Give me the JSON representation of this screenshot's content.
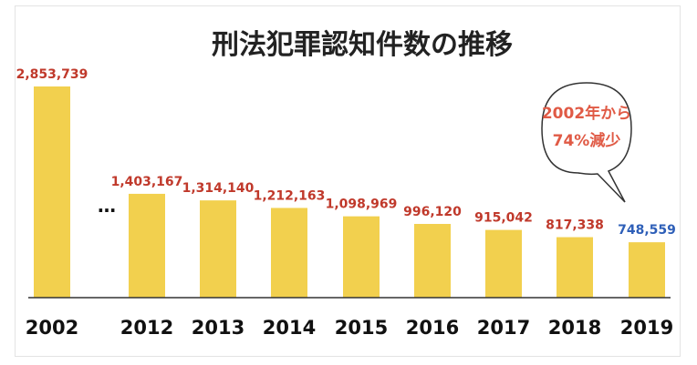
{
  "chart_data": {
    "type": "bar",
    "title": "刑法犯罪認知件数の推移",
    "categories": [
      "2002",
      "2012",
      "2013",
      "2014",
      "2015",
      "2016",
      "2017",
      "2018",
      "2019"
    ],
    "values": [
      2853739,
      1403167,
      1314140,
      1212163,
      1098969,
      996120,
      915042,
      817338,
      748559
    ],
    "value_labels": [
      "2,853,739",
      "1,403,167",
      "1,314,140",
      "1,212,163",
      "1,098,969",
      "996,120",
      "915,042",
      "817,338",
      "748,559"
    ],
    "gap_marker": "…",
    "gap_after": "2002",
    "ylim": [
      0,
      2853739
    ],
    "xlabel": "",
    "ylabel": "",
    "grid": false,
    "callout": {
      "lines": [
        "2002年から",
        "74%減少"
      ],
      "target": "2019"
    },
    "colors": {
      "bar": "#f2d04e",
      "label": "#c0392b",
      "highlight_label": "#2e5fb8",
      "callout_text": "#e05a45",
      "axis": "#333333"
    },
    "highlight": "2019"
  }
}
